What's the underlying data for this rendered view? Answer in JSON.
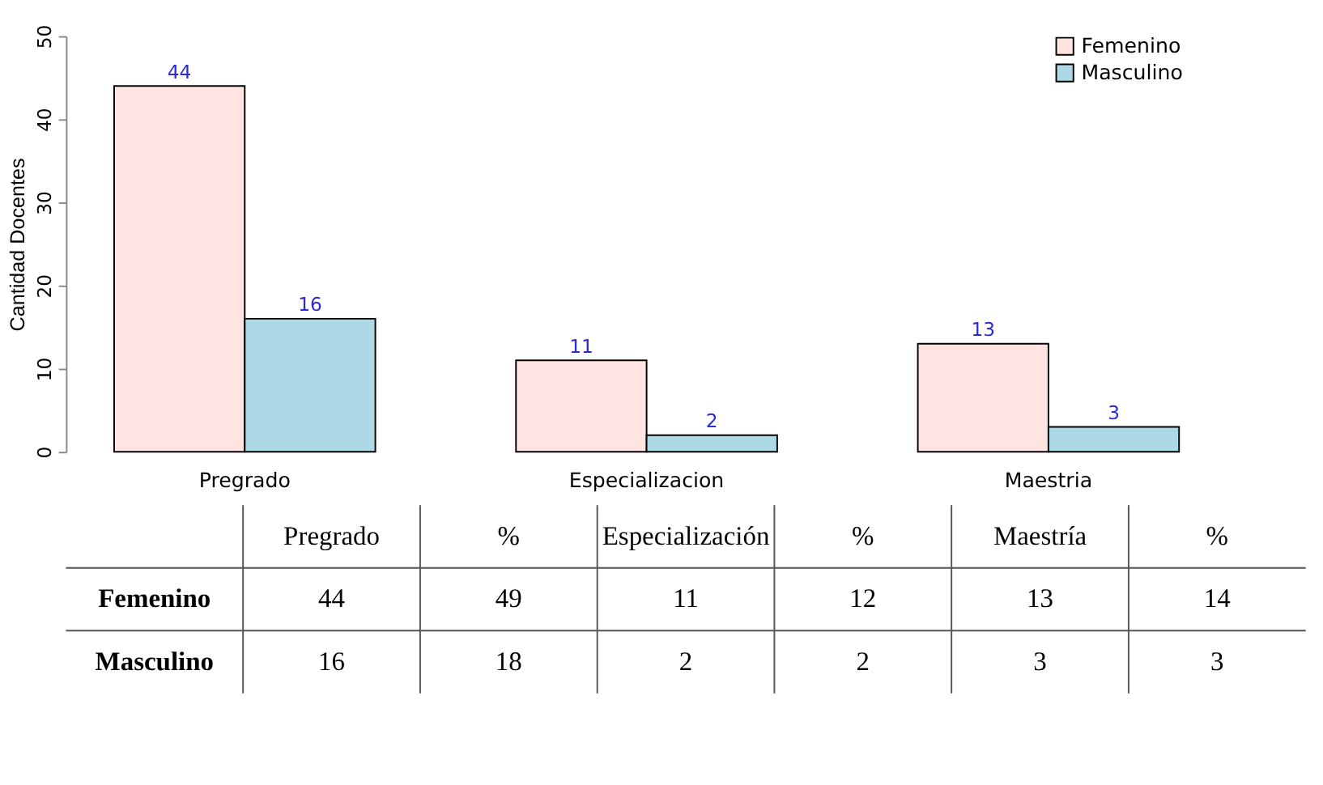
{
  "chart_data": [
    {
      "type": "bar",
      "ylabel": "Cantidad Docentes",
      "categories": [
        "Pregrado",
        "Especializacion",
        "Maestria"
      ],
      "series": [
        {
          "name": "Femenino",
          "color": "#ffe4e1",
          "values": [
            44,
            11,
            13
          ]
        },
        {
          "name": "Masculino",
          "color": "#add8e6",
          "values": [
            16,
            2,
            3
          ]
        }
      ],
      "ylim": [
        0,
        50
      ],
      "yticks": [
        0,
        10,
        20,
        30,
        40,
        50
      ],
      "grid": false,
      "legend": "top right",
      "data_labels": true
    },
    {
      "type": "other",
      "categories": [
        "Pregrado",
        "%",
        "Especialización",
        "%",
        "Maestría",
        "%"
      ],
      "y_categories": [
        "Femenino",
        "Masculino"
      ],
      "cell_labels": [
        [
          "44",
          "49",
          "11",
          "12",
          "13",
          "14"
        ],
        [
          "16",
          "18",
          "2",
          "2",
          "3",
          "3"
        ]
      ]
    }
  ]
}
